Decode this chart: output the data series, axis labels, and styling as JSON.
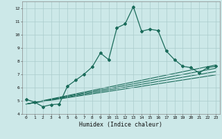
{
  "xlabel": "Humidex (Indice chaleur)",
  "ylabel": "",
  "bg_color": "#cce8e8",
  "grid_color": "#aacccc",
  "line_color": "#1a6b5a",
  "xlim": [
    -0.5,
    23.5
  ],
  "ylim": [
    4,
    12.5
  ],
  "xticks": [
    0,
    1,
    2,
    3,
    4,
    5,
    6,
    7,
    8,
    9,
    10,
    11,
    12,
    13,
    14,
    15,
    16,
    17,
    18,
    19,
    20,
    21,
    22,
    23
  ],
  "yticks": [
    4,
    5,
    6,
    7,
    8,
    9,
    10,
    11,
    12
  ],
  "main_x": [
    0,
    1,
    2,
    3,
    4,
    5,
    6,
    7,
    8,
    9,
    10,
    11,
    12,
    13,
    14,
    15,
    16,
    17,
    18,
    19,
    20,
    21,
    22,
    23
  ],
  "main_y": [
    5.1,
    4.9,
    4.55,
    4.7,
    4.75,
    6.1,
    6.55,
    7.0,
    7.55,
    8.6,
    8.1,
    10.5,
    10.8,
    12.1,
    10.25,
    10.4,
    10.3,
    8.75,
    8.1,
    7.6,
    7.5,
    7.1,
    7.5,
    7.6
  ],
  "line2_x": [
    0,
    23
  ],
  "line2_y": [
    4.75,
    7.7
  ],
  "line3_x": [
    0,
    23
  ],
  "line3_y": [
    4.75,
    7.45
  ],
  "line4_x": [
    0,
    23
  ],
  "line4_y": [
    4.75,
    7.2
  ],
  "line5_x": [
    0,
    23
  ],
  "line5_y": [
    4.75,
    6.95
  ]
}
